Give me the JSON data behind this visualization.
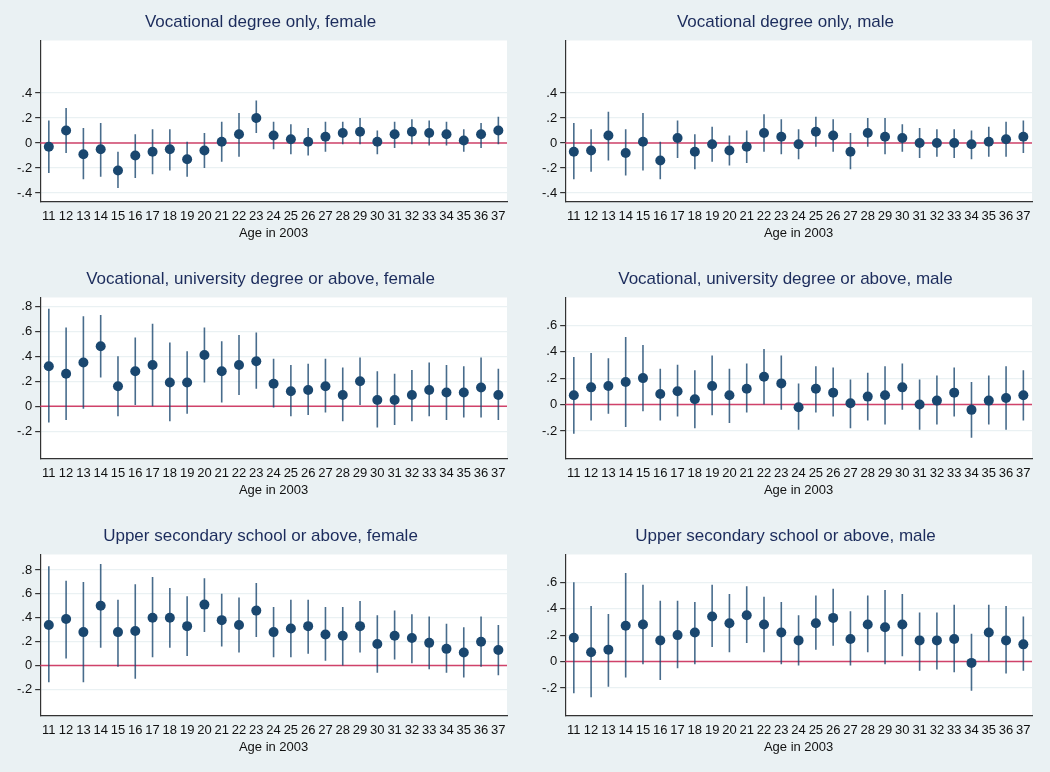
{
  "chart_data": [
    {
      "type": "scatter",
      "title": "Vocational degree only, female",
      "xlabel": "Age in 2003",
      "categories": [
        "11",
        "12",
        "13",
        "14",
        "15",
        "16",
        "17",
        "18",
        "19",
        "20",
        "21",
        "22",
        "23",
        "24",
        "25",
        "26",
        "27",
        "28",
        "29",
        "30",
        "31",
        "32",
        "33",
        "34",
        "35",
        "36",
        "37"
      ],
      "series": [
        {
          "color": "#1a476f",
          "values": [
            -0.03,
            0.1,
            -0.09,
            -0.05,
            -0.22,
            -0.1,
            -0.07,
            -0.05,
            -0.13,
            -0.06,
            0.01,
            0.07,
            0.2,
            0.06,
            0.03,
            0.01,
            0.05,
            0.08,
            0.09,
            0.01,
            0.07,
            0.09,
            0.08,
            0.07,
            0.02,
            0.07,
            0.1
          ],
          "errors": [
            [
              -0.24,
              0.18
            ],
            [
              -0.08,
              0.28
            ],
            [
              -0.29,
              0.12
            ],
            [
              -0.27,
              0.16
            ],
            [
              -0.36,
              -0.07
            ],
            [
              -0.28,
              0.07
            ],
            [
              -0.25,
              0.11
            ],
            [
              -0.22,
              0.11
            ],
            [
              -0.27,
              0.01
            ],
            [
              -0.2,
              0.08
            ],
            [
              -0.15,
              0.17
            ],
            [
              -0.11,
              0.24
            ],
            [
              0.08,
              0.34
            ],
            [
              -0.05,
              0.17
            ],
            [
              -0.09,
              0.15
            ],
            [
              -0.1,
              0.12
            ],
            [
              -0.07,
              0.17
            ],
            [
              -0.01,
              0.17
            ],
            [
              -0.01,
              0.2
            ],
            [
              -0.09,
              0.1
            ],
            [
              -0.04,
              0.17
            ],
            [
              -0.01,
              0.19
            ],
            [
              -0.02,
              0.18
            ],
            [
              -0.02,
              0.17
            ],
            [
              -0.07,
              0.11
            ],
            [
              -0.04,
              0.16
            ],
            [
              -0.01,
              0.21
            ]
          ]
        }
      ],
      "ylim": [
        -0.47,
        0.82
      ],
      "yticks": [
        {
          "value": -0.4,
          "label": "-.4"
        },
        {
          "value": -0.2,
          "label": "-.2"
        },
        {
          "value": 0,
          "label": "0"
        },
        {
          "value": 0.2,
          "label": ".2"
        },
        {
          "value": 0.4,
          "label": ".4"
        }
      ],
      "grid": "y",
      "marker": "circle",
      "ref_lines": [
        {
          "axis": "y",
          "value": 0,
          "color": "#d0426a"
        }
      ]
    },
    {
      "type": "scatter",
      "title": "Vocational degree only, male",
      "xlabel": "Age in 2003",
      "categories": [
        "11",
        "12",
        "13",
        "14",
        "15",
        "16",
        "17",
        "18",
        "19",
        "20",
        "21",
        "22",
        "23",
        "24",
        "25",
        "26",
        "27",
        "28",
        "29",
        "30",
        "31",
        "32",
        "33",
        "34",
        "35",
        "36",
        "37"
      ],
      "series": [
        {
          "color": "#1a476f",
          "values": [
            -0.07,
            -0.06,
            0.06,
            -0.08,
            0.01,
            -0.14,
            0.04,
            -0.07,
            -0.01,
            -0.06,
            -0.03,
            0.08,
            0.05,
            -0.01,
            0.09,
            0.06,
            -0.07,
            0.08,
            0.05,
            0.04,
            0.0,
            0.0,
            0.0,
            -0.01,
            0.01,
            0.03,
            0.05
          ],
          "errors": [
            [
              -0.29,
              0.16
            ],
            [
              -0.23,
              0.11
            ],
            [
              -0.14,
              0.25
            ],
            [
              -0.26,
              0.11
            ],
            [
              -0.22,
              0.24
            ],
            [
              -0.29,
              0.01
            ],
            [
              -0.12,
              0.18
            ],
            [
              -0.21,
              0.07
            ],
            [
              -0.15,
              0.13
            ],
            [
              -0.18,
              0.06
            ],
            [
              -0.16,
              0.1
            ],
            [
              -0.07,
              0.23
            ],
            [
              -0.09,
              0.19
            ],
            [
              -0.13,
              0.11
            ],
            [
              -0.03,
              0.21
            ],
            [
              -0.07,
              0.19
            ],
            [
              -0.21,
              0.08
            ],
            [
              -0.03,
              0.2
            ],
            [
              -0.09,
              0.2
            ],
            [
              -0.07,
              0.15
            ],
            [
              -0.12,
              0.12
            ],
            [
              -0.11,
              0.11
            ],
            [
              -0.12,
              0.11
            ],
            [
              -0.13,
              0.1
            ],
            [
              -0.11,
              0.13
            ],
            [
              -0.11,
              0.17
            ],
            [
              -0.08,
              0.18
            ]
          ]
        }
      ],
      "ylim": [
        -0.47,
        0.82
      ],
      "yticks": [
        {
          "value": -0.4,
          "label": "-.4"
        },
        {
          "value": -0.2,
          "label": "-.2"
        },
        {
          "value": 0,
          "label": "0"
        },
        {
          "value": 0.2,
          "label": ".2"
        },
        {
          "value": 0.4,
          "label": ".4"
        }
      ],
      "grid": "y",
      "marker": "circle",
      "ref_lines": [
        {
          "axis": "y",
          "value": 0,
          "color": "#d0426a"
        }
      ]
    },
    {
      "type": "scatter",
      "title": "Vocational, university degree or above, female",
      "xlabel": "Age in 2003",
      "categories": [
        "11",
        "12",
        "13",
        "14",
        "15",
        "16",
        "17",
        "18",
        "19",
        "20",
        "21",
        "22",
        "23",
        "24",
        "25",
        "26",
        "27",
        "28",
        "29",
        "30",
        "31",
        "32",
        "33",
        "34",
        "35",
        "36",
        "37"
      ],
      "series": [
        {
          "color": "#1a476f",
          "values": [
            0.32,
            0.26,
            0.35,
            0.48,
            0.16,
            0.28,
            0.33,
            0.19,
            0.19,
            0.41,
            0.28,
            0.33,
            0.36,
            0.18,
            0.12,
            0.13,
            0.16,
            0.09,
            0.2,
            0.05,
            0.05,
            0.09,
            0.13,
            0.11,
            0.11,
            0.15,
            0.09
          ],
          "errors": [
            [
              -0.13,
              0.78
            ],
            [
              -0.11,
              0.63
            ],
            [
              -0.02,
              0.72
            ],
            [
              0.23,
              0.73
            ],
            [
              -0.08,
              0.4
            ],
            [
              0.01,
              0.55
            ],
            [
              0.0,
              0.66
            ],
            [
              -0.12,
              0.51
            ],
            [
              -0.06,
              0.44
            ],
            [
              0.19,
              0.63
            ],
            [
              0.03,
              0.52
            ],
            [
              0.09,
              0.57
            ],
            [
              0.14,
              0.59
            ],
            [
              -0.01,
              0.38
            ],
            [
              -0.08,
              0.33
            ],
            [
              -0.07,
              0.34
            ],
            [
              -0.05,
              0.38
            ],
            [
              -0.12,
              0.31
            ],
            [
              0.01,
              0.39
            ],
            [
              -0.17,
              0.28
            ],
            [
              -0.15,
              0.26
            ],
            [
              -0.12,
              0.29
            ],
            [
              -0.08,
              0.35
            ],
            [
              -0.11,
              0.33
            ],
            [
              -0.09,
              0.32
            ],
            [
              -0.09,
              0.39
            ],
            [
              -0.11,
              0.3
            ]
          ]
        }
      ],
      "ylim": [
        -0.42,
        0.87
      ],
      "yticks": [
        {
          "value": -0.2,
          "label": "-.2"
        },
        {
          "value": 0,
          "label": "0"
        },
        {
          "value": 0.2,
          "label": ".2"
        },
        {
          "value": 0.4,
          "label": ".4"
        },
        {
          "value": 0.6,
          "label": ".6"
        },
        {
          "value": 0.8,
          "label": ".8"
        }
      ],
      "grid": "y",
      "marker": "circle",
      "ref_lines": [
        {
          "axis": "y",
          "value": 0,
          "color": "#d0426a"
        }
      ]
    },
    {
      "type": "scatter",
      "title": "Vocational, university degree or above, male",
      "xlabel": "Age in 2003",
      "categories": [
        "11",
        "12",
        "13",
        "14",
        "15",
        "16",
        "17",
        "18",
        "19",
        "20",
        "21",
        "22",
        "23",
        "24",
        "25",
        "26",
        "27",
        "28",
        "29",
        "30",
        "31",
        "32",
        "33",
        "34",
        "35",
        "36",
        "37"
      ],
      "series": [
        {
          "color": "#1a476f",
          "values": [
            0.07,
            0.13,
            0.14,
            0.17,
            0.2,
            0.08,
            0.1,
            0.04,
            0.14,
            0.07,
            0.12,
            0.21,
            0.16,
            -0.02,
            0.12,
            0.09,
            0.01,
            0.06,
            0.07,
            0.13,
            0.0,
            0.03,
            0.09,
            -0.04,
            0.03,
            0.05,
            0.07
          ],
          "errors": [
            [
              -0.22,
              0.36
            ],
            [
              -0.12,
              0.39
            ],
            [
              -0.07,
              0.35
            ],
            [
              -0.17,
              0.51
            ],
            [
              -0.05,
              0.45
            ],
            [
              -0.12,
              0.27
            ],
            [
              -0.09,
              0.3
            ],
            [
              -0.18,
              0.26
            ],
            [
              -0.08,
              0.37
            ],
            [
              -0.14,
              0.27
            ],
            [
              -0.06,
              0.31
            ],
            [
              0.0,
              0.42
            ],
            [
              -0.04,
              0.37
            ],
            [
              -0.19,
              0.16
            ],
            [
              -0.06,
              0.29
            ],
            [
              -0.09,
              0.28
            ],
            [
              -0.18,
              0.19
            ],
            [
              -0.12,
              0.24
            ],
            [
              -0.15,
              0.29
            ],
            [
              -0.04,
              0.31
            ],
            [
              -0.19,
              0.19
            ],
            [
              -0.15,
              0.22
            ],
            [
              -0.09,
              0.28
            ],
            [
              -0.25,
              0.17
            ],
            [
              -0.15,
              0.22
            ],
            [
              -0.19,
              0.29
            ],
            [
              -0.12,
              0.26
            ]
          ]
        }
      ],
      "ylim": [
        -0.41,
        0.81
      ],
      "yticks": [
        {
          "value": -0.2,
          "label": "-.2"
        },
        0,
        {
          "value": 0.2,
          "label": ".2"
        },
        {
          "value": 0.4,
          "label": ".4"
        },
        {
          "value": 0.6,
          "label": ".6"
        }
      ],
      "grid": "y",
      "marker": "circle",
      "ref_lines": [
        {
          "axis": "y",
          "value": 0,
          "color": "#d0426a"
        }
      ]
    },
    {
      "type": "scatter",
      "title": "Upper secondary school or above, female",
      "xlabel": "Age in 2003",
      "categories": [
        "11",
        "12",
        "13",
        "14",
        "15",
        "16",
        "17",
        "18",
        "19",
        "20",
        "21",
        "22",
        "23",
        "24",
        "25",
        "26",
        "27",
        "28",
        "29",
        "30",
        "31",
        "32",
        "33",
        "34",
        "35",
        "36",
        "37"
      ],
      "series": [
        {
          "color": "#1a476f",
          "values": [
            0.34,
            0.39,
            0.28,
            0.5,
            0.28,
            0.29,
            0.4,
            0.4,
            0.33,
            0.51,
            0.38,
            0.34,
            0.46,
            0.28,
            0.31,
            0.33,
            0.26,
            0.25,
            0.33,
            0.18,
            0.25,
            0.23,
            0.19,
            0.14,
            0.11,
            0.2,
            0.13
          ],
          "errors": [
            [
              -0.14,
              0.83
            ],
            [
              0.06,
              0.71
            ],
            [
              -0.14,
              0.7
            ],
            [
              0.15,
              0.85
            ],
            [
              -0.01,
              0.55
            ],
            [
              -0.11,
              0.68
            ],
            [
              0.07,
              0.74
            ],
            [
              0.15,
              0.65
            ],
            [
              0.08,
              0.58
            ],
            [
              0.28,
              0.73
            ],
            [
              0.16,
              0.6
            ],
            [
              0.11,
              0.57
            ],
            [
              0.24,
              0.69
            ],
            [
              0.07,
              0.49
            ],
            [
              0.07,
              0.55
            ],
            [
              0.1,
              0.55
            ],
            [
              0.04,
              0.49
            ],
            [
              0.0,
              0.49
            ],
            [
              0.11,
              0.54
            ],
            [
              -0.06,
              0.42
            ],
            [
              0.05,
              0.46
            ],
            [
              0.02,
              0.43
            ],
            [
              -0.03,
              0.41
            ],
            [
              -0.06,
              0.35
            ],
            [
              -0.1,
              0.32
            ],
            [
              -0.01,
              0.41
            ],
            [
              -0.08,
              0.34
            ]
          ]
        }
      ],
      "ylim": [
        -0.42,
        0.93
      ],
      "yticks": [
        {
          "value": -0.2,
          "label": "-.2"
        },
        {
          "value": 0,
          "label": "0"
        },
        {
          "value": 0.2,
          "label": ".2"
        },
        {
          "value": 0.4,
          "label": ".4"
        },
        {
          "value": 0.6,
          "label": ".6"
        },
        {
          "value": 0.8,
          "label": ".8"
        }
      ],
      "grid": "y",
      "marker": "circle",
      "ref_lines": [
        {
          "axis": "y",
          "value": 0,
          "color": "#d0426a"
        }
      ]
    },
    {
      "type": "scatter",
      "title": "Upper secondary school or above, male",
      "xlabel": "Age in 2003",
      "categories": [
        "11",
        "12",
        "13",
        "14",
        "15",
        "16",
        "17",
        "18",
        "19",
        "20",
        "21",
        "22",
        "23",
        "24",
        "25",
        "26",
        "27",
        "28",
        "29",
        "30",
        "31",
        "32",
        "33",
        "34",
        "35",
        "36",
        "37"
      ],
      "series": [
        {
          "color": "#1a476f",
          "values": [
            0.18,
            0.07,
            0.09,
            0.27,
            0.28,
            0.16,
            0.2,
            0.22,
            0.34,
            0.29,
            0.35,
            0.28,
            0.22,
            0.16,
            0.29,
            0.33,
            0.17,
            0.28,
            0.26,
            0.28,
            0.16,
            0.16,
            0.17,
            -0.01,
            0.22,
            0.16,
            0.13
          ],
          "errors": [
            [
              -0.24,
              0.6
            ],
            [
              -0.27,
              0.42
            ],
            [
              -0.19,
              0.36
            ],
            [
              -0.12,
              0.67
            ],
            [
              -0.02,
              0.58
            ],
            [
              -0.14,
              0.46
            ],
            [
              -0.05,
              0.46
            ],
            [
              -0.02,
              0.45
            ],
            [
              0.11,
              0.58
            ],
            [
              0.07,
              0.51
            ],
            [
              0.14,
              0.57
            ],
            [
              0.07,
              0.49
            ],
            [
              -0.02,
              0.45
            ],
            [
              -0.03,
              0.35
            ],
            [
              0.09,
              0.5
            ],
            [
              0.12,
              0.55
            ],
            [
              -0.03,
              0.38
            ],
            [
              0.07,
              0.5
            ],
            [
              -0.02,
              0.54
            ],
            [
              0.04,
              0.51
            ],
            [
              -0.07,
              0.37
            ],
            [
              -0.06,
              0.37
            ],
            [
              -0.08,
              0.43
            ],
            [
              -0.22,
              0.21
            ],
            [
              0.0,
              0.43
            ],
            [
              -0.09,
              0.42
            ],
            [
              -0.07,
              0.34
            ]
          ]
        }
      ],
      "ylim": [
        -0.41,
        0.81
      ],
      "yticks": [
        {
          "value": -0.2,
          "label": "-.2"
        },
        0,
        {
          "value": 0.2,
          "label": ".2"
        },
        {
          "value": 0.4,
          "label": ".4"
        },
        {
          "value": 0.6,
          "label": ".6"
        }
      ],
      "grid": "y",
      "marker": "circle",
      "ref_lines": [
        {
          "axis": "y",
          "value": 0,
          "color": "#d0426a"
        }
      ]
    }
  ]
}
